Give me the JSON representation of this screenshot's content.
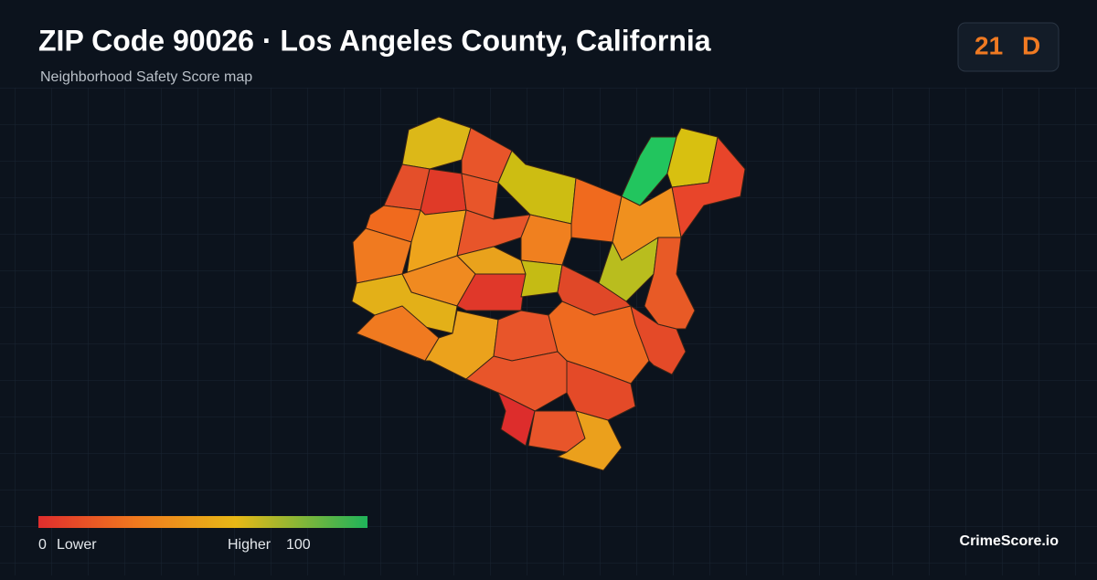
{
  "header": {
    "title": "ZIP Code 90026 · Los Angeles County, California",
    "subtitle": "Neighborhood Safety Score map"
  },
  "badge": {
    "score": "21",
    "grade": "D"
  },
  "legend": {
    "min": "0",
    "min_label": "Lower",
    "max_label": "Higher",
    "max": "100"
  },
  "footer": {
    "brand": "CrimeScore.io"
  }
}
